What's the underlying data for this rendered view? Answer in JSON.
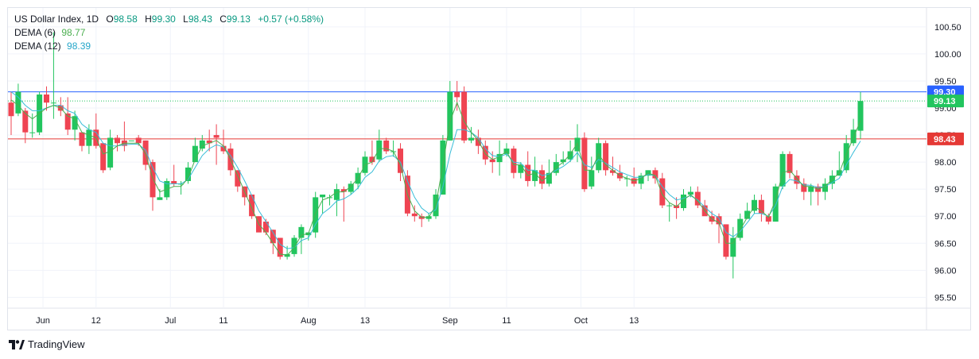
{
  "legend": {
    "title": "US Dollar Index, 1D",
    "open_label": "O",
    "open": "98.58",
    "high_label": "H",
    "high": "99.30",
    "low_label": "L",
    "low": "98.43",
    "close_label": "C",
    "close": "99.13",
    "change": "+0.57 (+0.58%)",
    "dema6_label": "DEMA (6)",
    "dema6_value": "98.77",
    "dema12_label": "DEMA (12)",
    "dema12_value": "98.39"
  },
  "footer": {
    "brand": "TradingView"
  },
  "colors": {
    "up": "#22c55e",
    "down": "#ef4452",
    "dema6": "#4caf50",
    "dema12": "#38bdd8",
    "blue_line": "#2962ff",
    "red_line": "#e53935",
    "grid": "#f0f3fa"
  },
  "chart_data": {
    "type": "candlestick",
    "title": "US Dollar Index, 1D",
    "ylim": [
      95.3,
      100.85
    ],
    "y_ticks": [
      "95.50",
      "96.00",
      "96.50",
      "97.00",
      "97.50",
      "98.00",
      "98.50",
      "99.00",
      "99.50",
      "100.00",
      "100.50"
    ],
    "x_ticks": [
      "Jun",
      "12",
      "Jul",
      "11",
      "Aug",
      "13",
      "Sep",
      "11",
      "Oct",
      "13"
    ],
    "x_tick_index": [
      4.5,
      12,
      22.5,
      30,
      42,
      50,
      62,
      70,
      80.5,
      88
    ],
    "horizontal_lines": [
      {
        "value": 99.3,
        "label": "99.30",
        "color": "blue"
      },
      {
        "value": 98.43,
        "label": "98.43",
        "color": "red"
      },
      {
        "value": 99.13,
        "label": "99.13",
        "color": "green"
      }
    ],
    "candles": [
      [
        99.1,
        98.85,
        99.3,
        98.5
      ],
      [
        98.9,
        99.3,
        99.45,
        98.85
      ],
      [
        98.95,
        98.55,
        99.0,
        98.35
      ],
      [
        98.55,
        98.55,
        98.9,
        98.45
      ],
      [
        98.55,
        99.25,
        99.3,
        98.5
      ],
      [
        99.25,
        99.1,
        99.4,
        98.95
      ],
      [
        99.1,
        99.1,
        100.4,
        98.8
      ],
      [
        99.05,
        98.95,
        99.2,
        98.85
      ],
      [
        98.9,
        98.6,
        99.2,
        98.5
      ],
      [
        98.6,
        98.85,
        98.95,
        98.4
      ],
      [
        98.55,
        98.3,
        98.55,
        98.2
      ],
      [
        98.3,
        98.6,
        98.7,
        98.15
      ],
      [
        98.6,
        98.3,
        98.9,
        98.25
      ],
      [
        98.35,
        97.85,
        98.35,
        97.8
      ],
      [
        97.9,
        98.45,
        98.6,
        97.85
      ],
      [
        98.45,
        98.35,
        98.5,
        98.2
      ],
      [
        98.4,
        98.3,
        98.75,
        98.2
      ],
      [
        98.4,
        98.4,
        98.4,
        98.4
      ],
      [
        98.45,
        98.35,
        98.5,
        98.3
      ],
      [
        98.4,
        97.95,
        98.4,
        97.85
      ],
      [
        98.0,
        97.35,
        98.05,
        97.1
      ],
      [
        97.3,
        97.35,
        97.5,
        97.3
      ],
      [
        97.35,
        97.65,
        97.7,
        97.3
      ],
      [
        97.65,
        97.6,
        97.95,
        97.55
      ],
      [
        97.6,
        97.6,
        97.65,
        97.4
      ],
      [
        97.65,
        97.9,
        98.0,
        97.6
      ],
      [
        98.0,
        98.3,
        98.45,
        98.0
      ],
      [
        98.25,
        98.4,
        98.5,
        98.2
      ],
      [
        98.4,
        98.35,
        98.6,
        98.2
      ],
      [
        98.5,
        98.45,
        98.7,
        97.95
      ],
      [
        98.3,
        98.2,
        98.6,
        98.15
      ],
      [
        98.25,
        97.85,
        98.35,
        97.75
      ],
      [
        97.85,
        97.55,
        97.85,
        97.45
      ],
      [
        97.55,
        97.35,
        97.55,
        97.2
      ],
      [
        97.4,
        97.0,
        97.4,
        96.95
      ],
      [
        97.0,
        96.7,
        97.0,
        96.9
      ],
      [
        96.9,
        96.7,
        96.95,
        96.65
      ],
      [
        96.75,
        96.5,
        96.75,
        96.3
      ],
      [
        96.6,
        96.25,
        96.6,
        96.2
      ],
      [
        96.25,
        96.3,
        96.45,
        96.2
      ],
      [
        96.3,
        96.6,
        96.65,
        96.25
      ],
      [
        96.6,
        96.8,
        96.85,
        96.3
      ],
      [
        96.65,
        96.7,
        96.7,
        96.55
      ],
      [
        96.7,
        97.35,
        97.45,
        96.6
      ],
      [
        97.35,
        97.4,
        97.4,
        97.05
      ],
      [
        97.35,
        97.35,
        97.4,
        97.2
      ],
      [
        97.3,
        97.5,
        97.6,
        97.0
      ],
      [
        97.5,
        97.45,
        97.55,
        96.9
      ],
      [
        97.45,
        97.6,
        97.65,
        97.4
      ],
      [
        97.6,
        97.8,
        97.9,
        97.5
      ],
      [
        97.8,
        98.1,
        98.2,
        97.75
      ],
      [
        98.1,
        98.0,
        98.4,
        97.95
      ],
      [
        98.05,
        98.4,
        98.6,
        98.0
      ],
      [
        98.4,
        98.2,
        98.45,
        98.15
      ],
      [
        98.2,
        98.2,
        98.4,
        98.1
      ],
      [
        98.25,
        97.8,
        98.35,
        97.65
      ],
      [
        97.75,
        97.05,
        97.85,
        97.0
      ],
      [
        97.05,
        97.0,
        97.2,
        96.9
      ],
      [
        97.0,
        96.95,
        97.05,
        96.8
      ],
      [
        96.95,
        97.0,
        97.05,
        96.9
      ],
      [
        97.0,
        97.4,
        97.5,
        96.95
      ],
      [
        97.4,
        98.4,
        98.5,
        97.45
      ],
      [
        98.4,
        99.3,
        99.5,
        98.4
      ],
      [
        99.3,
        99.2,
        99.5,
        98.95
      ],
      [
        99.3,
        98.4,
        99.4,
        98.35
      ],
      [
        98.4,
        98.45,
        98.65,
        98.35
      ],
      [
        98.45,
        98.3,
        98.6,
        98.15
      ],
      [
        98.3,
        98.05,
        98.4,
        97.95
      ],
      [
        98.05,
        98.0,
        98.2,
        97.8
      ],
      [
        98.0,
        98.15,
        98.4,
        97.75
      ],
      [
        98.15,
        98.25,
        98.35,
        98.1
      ],
      [
        98.25,
        97.8,
        98.3,
        97.7
      ],
      [
        97.8,
        97.95,
        98.0,
        97.7
      ],
      [
        97.95,
        97.65,
        98.2,
        97.55
      ],
      [
        97.65,
        97.85,
        98.1,
        97.55
      ],
      [
        97.85,
        97.6,
        97.95,
        97.5
      ],
      [
        97.6,
        97.8,
        98.05,
        97.55
      ],
      [
        97.8,
        98.0,
        98.15,
        97.75
      ],
      [
        98.0,
        98.05,
        98.2,
        97.95
      ],
      [
        98.05,
        98.2,
        98.4,
        98.0
      ],
      [
        98.2,
        98.45,
        98.7,
        98.0
      ],
      [
        98.45,
        97.5,
        98.55,
        97.45
      ],
      [
        97.55,
        97.85,
        98.1,
        97.5
      ],
      [
        97.85,
        98.35,
        98.45,
        97.8
      ],
      [
        98.35,
        97.85,
        98.4,
        97.75
      ],
      [
        97.85,
        97.8,
        98.1,
        97.75
      ],
      [
        97.8,
        97.7,
        97.95,
        97.65
      ],
      [
        97.7,
        97.7,
        97.75,
        97.55
      ],
      [
        97.7,
        97.6,
        97.9,
        97.55
      ],
      [
        97.6,
        97.75,
        97.8,
        97.5
      ],
      [
        97.75,
        97.85,
        97.85,
        97.65
      ],
      [
        97.85,
        97.7,
        97.9,
        97.6
      ],
      [
        97.7,
        97.2,
        97.8,
        97.15
      ],
      [
        97.2,
        97.2,
        97.25,
        96.9
      ],
      [
        97.2,
        97.15,
        97.35,
        96.95
      ],
      [
        97.15,
        97.4,
        97.5,
        97.1
      ],
      [
        97.4,
        97.45,
        97.55,
        97.35
      ],
      [
        97.45,
        97.2,
        97.55,
        97.15
      ],
      [
        97.2,
        97.0,
        97.3,
        97.05
      ],
      [
        97.0,
        96.9,
        97.1,
        96.85
      ],
      [
        97.0,
        96.85,
        97.05,
        96.5
      ],
      [
        96.85,
        96.25,
        96.85,
        96.2
      ],
      [
        96.25,
        96.6,
        96.8,
        95.85
      ],
      [
        96.6,
        96.95,
        97.05,
        96.55
      ],
      [
        96.95,
        97.1,
        97.25,
        96.95
      ],
      [
        97.1,
        97.3,
        97.4,
        97.05
      ],
      [
        97.3,
        97.05,
        97.4,
        96.9
      ],
      [
        97.0,
        96.9,
        97.05,
        96.85
      ],
      [
        96.9,
        97.55,
        97.6,
        96.9
      ],
      [
        97.55,
        98.15,
        98.2,
        97.5
      ],
      [
        98.15,
        97.8,
        98.2,
        97.7
      ],
      [
        97.75,
        97.6,
        97.85,
        97.5
      ],
      [
        97.6,
        97.45,
        97.7,
        97.3
      ],
      [
        97.45,
        97.55,
        97.6,
        97.2
      ],
      [
        97.55,
        97.45,
        97.6,
        97.2
      ],
      [
        97.45,
        97.6,
        97.7,
        97.3
      ],
      [
        97.6,
        97.75,
        97.85,
        97.5
      ],
      [
        97.75,
        97.85,
        98.2,
        97.75
      ],
      [
        97.85,
        98.35,
        98.5,
        97.8
      ],
      [
        98.35,
        98.6,
        98.8,
        98.3
      ],
      [
        98.58,
        99.13,
        99.3,
        98.43
      ]
    ],
    "dema6": [
      99.15,
      99.05,
      98.9,
      98.8,
      98.9,
      99.0,
      99.05,
      99.0,
      98.85,
      98.8,
      98.55,
      98.5,
      98.45,
      98.15,
      98.2,
      98.3,
      98.35,
      98.35,
      98.35,
      98.15,
      97.7,
      97.45,
      97.5,
      97.55,
      97.55,
      97.7,
      98.05,
      98.3,
      98.35,
      98.4,
      98.3,
      98.05,
      97.75,
      97.45,
      97.15,
      96.85,
      96.7,
      96.5,
      96.3,
      96.28,
      96.42,
      96.65,
      96.68,
      97.05,
      97.3,
      97.35,
      97.45,
      97.45,
      97.55,
      97.7,
      97.95,
      98.0,
      98.25,
      98.25,
      98.2,
      97.95,
      97.4,
      97.1,
      96.98,
      96.98,
      97.2,
      97.95,
      98.75,
      99.1,
      98.75,
      98.55,
      98.4,
      98.15,
      98.05,
      98.1,
      98.2,
      97.95,
      97.95,
      97.75,
      97.8,
      97.65,
      97.75,
      97.9,
      98.0,
      98.15,
      98.35,
      97.85,
      97.85,
      98.15,
      97.95,
      97.85,
      97.75,
      97.7,
      97.65,
      97.7,
      97.8,
      97.75,
      97.4,
      97.25,
      97.18,
      97.3,
      97.4,
      97.28,
      97.1,
      96.95,
      96.88,
      96.5,
      96.5,
      96.75,
      96.98,
      97.18,
      97.1,
      96.98,
      97.3,
      97.8,
      97.85,
      97.7,
      97.55,
      97.55,
      97.5,
      97.55,
      97.68,
      97.8,
      98.15,
      98.45,
      98.77
    ],
    "dema12": [
      99.3,
      99.2,
      99.05,
      98.95,
      98.95,
      99.0,
      99.05,
      99.05,
      98.95,
      98.9,
      98.7,
      98.6,
      98.55,
      98.35,
      98.3,
      98.3,
      98.32,
      98.33,
      98.33,
      98.22,
      97.9,
      97.65,
      97.6,
      97.6,
      97.6,
      97.68,
      97.9,
      98.12,
      98.25,
      98.32,
      98.28,
      98.12,
      97.9,
      97.65,
      97.38,
      97.1,
      96.9,
      96.7,
      96.48,
      96.4,
      96.42,
      96.55,
      96.6,
      96.85,
      97.05,
      97.15,
      97.28,
      97.32,
      97.4,
      97.52,
      97.72,
      97.82,
      98.02,
      98.1,
      98.12,
      98.0,
      97.65,
      97.35,
      97.15,
      97.05,
      97.12,
      97.55,
      98.15,
      98.6,
      98.6,
      98.55,
      98.45,
      98.25,
      98.12,
      98.1,
      98.15,
      98.0,
      97.98,
      97.85,
      97.85,
      97.75,
      97.78,
      97.85,
      97.92,
      98.02,
      98.18,
      97.95,
      97.9,
      98.05,
      97.98,
      97.9,
      97.82,
      97.77,
      97.72,
      97.72,
      97.77,
      97.75,
      97.55,
      97.4,
      97.3,
      97.33,
      97.38,
      97.3,
      97.17,
      97.05,
      96.97,
      96.7,
      96.62,
      96.72,
      96.88,
      97.05,
      97.05,
      97.0,
      97.2,
      97.55,
      97.68,
      97.65,
      97.58,
      97.57,
      97.53,
      97.55,
      97.62,
      97.7,
      97.95,
      98.18,
      98.39
    ]
  }
}
